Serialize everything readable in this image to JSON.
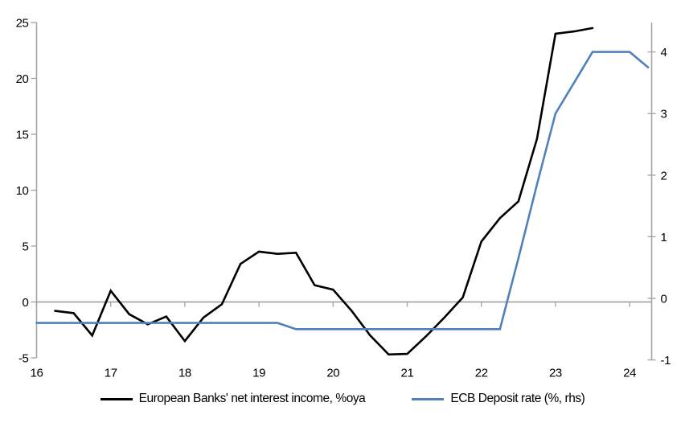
{
  "chart_data": {
    "type": "line",
    "title": "",
    "x_axis": {
      "ticks": [
        16,
        17,
        18,
        19,
        20,
        21,
        22,
        23,
        24
      ],
      "range": [
        16,
        24.3
      ]
    },
    "left_axis": {
      "ticks": [
        25,
        20,
        15,
        10,
        5,
        0,
        -5
      ],
      "range": [
        -5,
        25
      ]
    },
    "right_axis": {
      "ticks": [
        4,
        3,
        2,
        1,
        0,
        -1
      ],
      "range": [
        -1.05,
        4.5
      ]
    },
    "grid": "zero-line-only",
    "legend_position": "bottom",
    "series": [
      {
        "name": "European Banks' net interest income, %oya",
        "color": "#000000",
        "axis": "left",
        "x": [
          16.25,
          16.5,
          16.75,
          17.0,
          17.25,
          17.5,
          17.75,
          18.0,
          18.25,
          18.5,
          18.75,
          19.0,
          19.25,
          19.5,
          19.75,
          20.0,
          20.25,
          20.5,
          20.75,
          21.0,
          21.25,
          21.5,
          21.75,
          22.0,
          22.25,
          22.5,
          22.75,
          23.0,
          23.25,
          23.5
        ],
        "values": [
          -0.8,
          -1.0,
          -3.0,
          1.0,
          -1.1,
          -2.0,
          -1.3,
          -3.5,
          -1.4,
          -0.2,
          3.4,
          4.5,
          4.3,
          4.4,
          1.5,
          1.1,
          -0.8,
          -3.0,
          -4.7,
          -4.65,
          -3.1,
          -1.4,
          0.4,
          5.4,
          7.5,
          9.0,
          14.6,
          24.0,
          24.2,
          24.5
        ]
      },
      {
        "name": "ECB Deposit rate (%, rhs)",
        "color": "#4f81bd",
        "axis": "right",
        "x": [
          16.0,
          16.25,
          16.5,
          16.75,
          17.0,
          17.25,
          17.5,
          17.75,
          18.0,
          18.25,
          18.5,
          18.75,
          19.0,
          19.25,
          19.5,
          19.75,
          20.0,
          20.25,
          20.5,
          20.75,
          21.0,
          21.25,
          21.5,
          21.75,
          22.0,
          22.25,
          22.5,
          22.75,
          23.0,
          23.25,
          23.5,
          23.75,
          24.0,
          24.25
        ],
        "values": [
          -0.4,
          -0.4,
          -0.4,
          -0.4,
          -0.4,
          -0.4,
          -0.4,
          -0.4,
          -0.4,
          -0.4,
          -0.4,
          -0.4,
          -0.4,
          -0.4,
          -0.5,
          -0.5,
          -0.5,
          -0.5,
          -0.5,
          -0.5,
          -0.5,
          -0.5,
          -0.5,
          -0.5,
          -0.5,
          -0.5,
          0.65,
          1.85,
          3.0,
          3.5,
          4.0,
          4.0,
          4.0,
          3.75
        ]
      }
    ]
  },
  "colors": {
    "axis": "#a6a6a6",
    "zero_line": "#a6a6a6",
    "text": "#000000",
    "background": "#ffffff",
    "series1": "#000000",
    "series2": "#4f81bd"
  }
}
